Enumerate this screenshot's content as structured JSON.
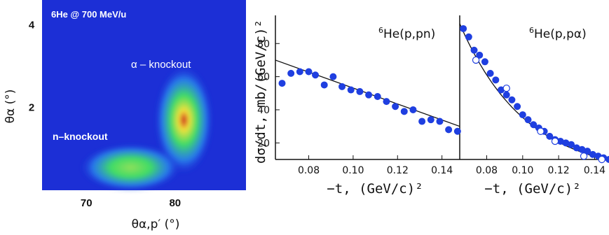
{
  "chart_data": [
    {
      "type": "heatmap",
      "annotation": "6He @ 700 MeV/u",
      "xlabel": "θα,p′ (°)",
      "ylabel": "θα (°)",
      "xticks": [
        "70",
        "80"
      ],
      "yticks": [
        "2",
        "4"
      ],
      "xlim": [
        65,
        88
      ],
      "ylim": [
        0,
        4.6
      ],
      "regions": [
        {
          "label": "α – knockout",
          "x": 81,
          "y": 1.7,
          "peak": 1.0
        },
        {
          "label": "n–knockout",
          "x": 75,
          "y": 0.55,
          "peak": 0.45
        }
      ],
      "colors": {
        "background": "#1c2fd6",
        "low": "#2a8cf0",
        "mid": "#3fdc66",
        "high": "#f2e23a",
        "peak": "#c81e1e"
      }
    },
    {
      "type": "scatter",
      "panel_label": "6He(p,pn)",
      "panel_label_sup": "6",
      "panel_label_main": "He(p,pn)",
      "xlabel": "−t, (GeV/c)²",
      "ylabel": "dσ/dt, mb/(GeV/c)²",
      "xlim": [
        0.065,
        0.148
      ],
      "ylim": [
        10,
        97
      ],
      "xticks": [
        "0.08",
        "0.10",
        "0.12",
        "0.14"
      ],
      "yticks": [
        "20",
        "40",
        "60",
        "80"
      ],
      "x": [
        0.068,
        0.072,
        0.076,
        0.08,
        0.083,
        0.087,
        0.091,
        0.095,
        0.099,
        0.103,
        0.107,
        0.111,
        0.115,
        0.119,
        0.123,
        0.127,
        0.131,
        0.135,
        0.139,
        0.143,
        0.147
      ],
      "y": [
        56,
        62,
        63,
        63,
        61,
        55,
        60,
        54,
        52,
        51,
        49,
        48,
        45,
        42,
        39,
        40,
        33,
        34,
        33,
        28,
        27
      ],
      "fit": {
        "x": [
          0.065,
          0.148
        ],
        "y": [
          70,
          30
        ]
      },
      "color": "#1f3fe0"
    },
    {
      "type": "scatter",
      "panel_label": "6He(p,pα)",
      "panel_label_sup": "6",
      "panel_label_main": "He(p,pα)",
      "xlabel": "−t, (GeV/c)²",
      "xlim": [
        0.065,
        0.148
      ],
      "ylim": [
        10,
        97
      ],
      "xticks": [
        "0.08",
        "0.10",
        "0.12",
        "0.14"
      ],
      "series": [
        {
          "marker": "filled",
          "x": [
            0.067,
            0.07,
            0.073,
            0.076,
            0.079,
            0.082,
            0.085,
            0.088,
            0.091,
            0.094,
            0.097,
            0.1,
            0.103,
            0.106,
            0.109,
            0.112,
            0.115,
            0.118,
            0.121,
            0.124,
            0.127,
            0.13,
            0.133,
            0.136,
            0.139,
            0.142,
            0.145,
            0.148
          ],
          "y": [
            89,
            84,
            76,
            73,
            69,
            62,
            58,
            52,
            49,
            46,
            42,
            37,
            34,
            31,
            29,
            27,
            24,
            22,
            21,
            20,
            19,
            17,
            16,
            15,
            13,
            12,
            11,
            10
          ]
        },
        {
          "marker": "open",
          "x": [
            0.074,
            0.091,
            0.11,
            0.118,
            0.134,
            0.144
          ],
          "y": [
            70,
            53,
            27,
            21,
            12,
            10
          ]
        }
      ],
      "fit": {
        "x": [
          0.065,
          0.148
        ],
        "curve": "exponential",
        "y0": 92,
        "y1": 9.5
      },
      "color": "#1f3fe0"
    }
  ]
}
